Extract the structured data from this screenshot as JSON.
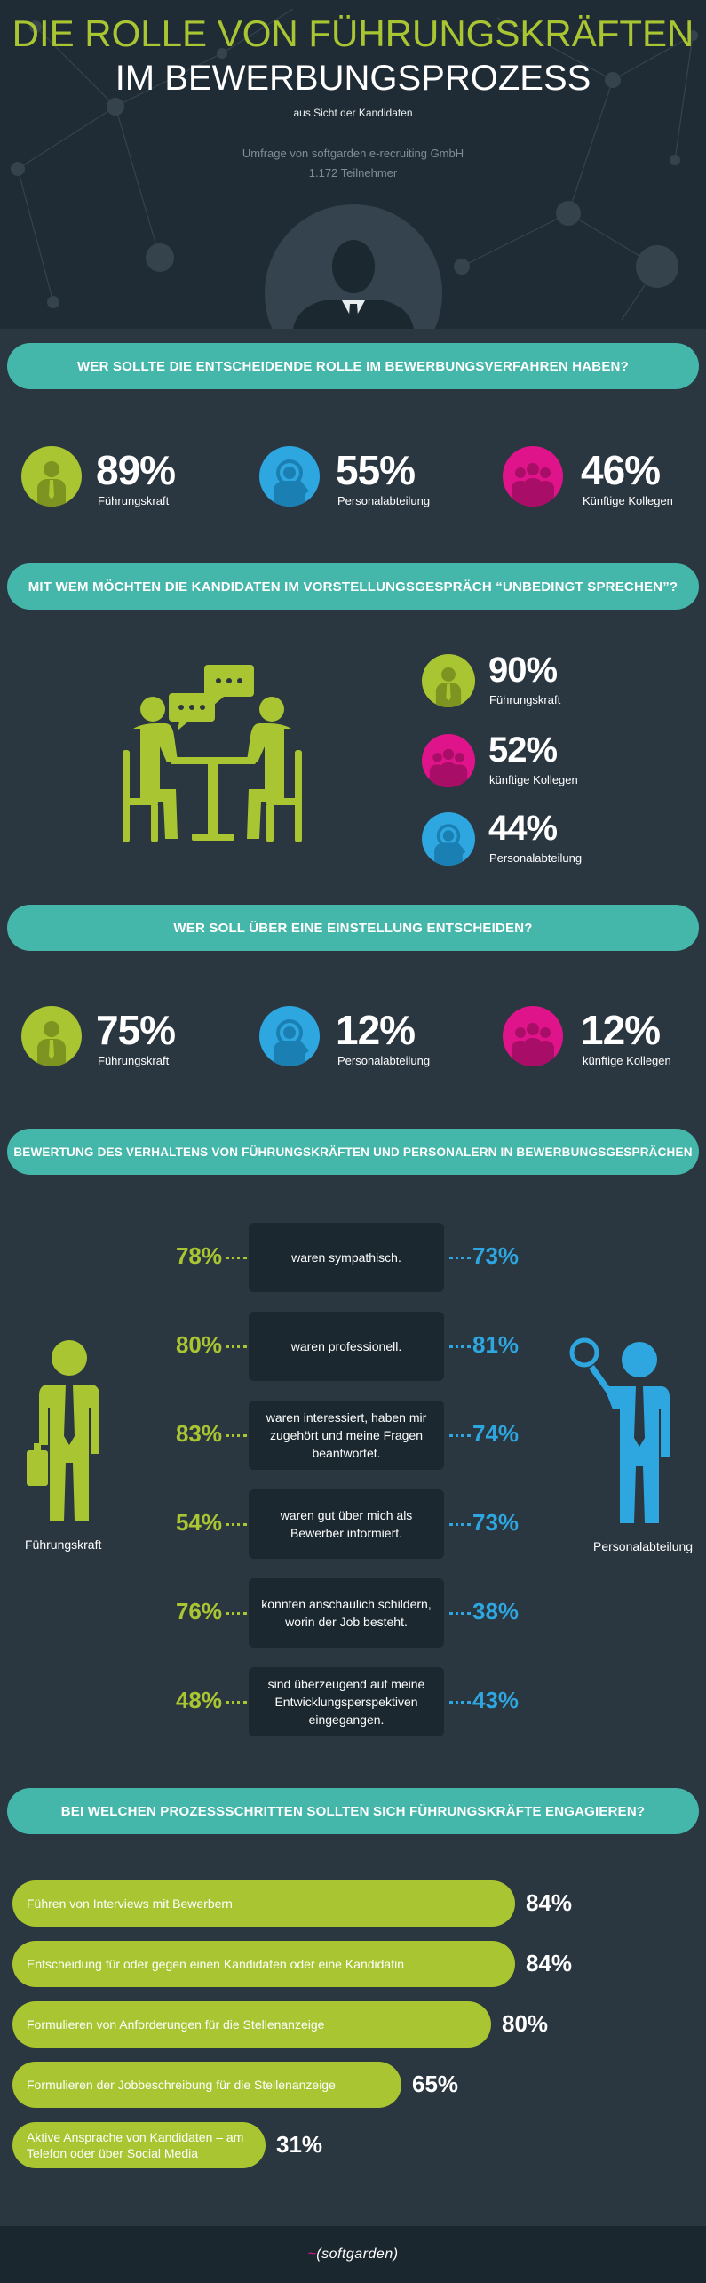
{
  "header": {
    "title_line1": "DIE ROLLE VON FÜHRUNGSKRÄFTEN",
    "title_line2": "IM BEWERBUNGSPROZESS",
    "subtitle": "aus Sicht der Kandidaten",
    "survey_line1": "Umfrage von softgarden e-recruiting GmbH",
    "survey_line2": "1.172 Teilnehmer"
  },
  "colors": {
    "green": "#a9c532",
    "blue": "#2ea6e0",
    "pink": "#e0148a",
    "teal": "#45b6aa",
    "background": "#2a3640"
  },
  "section1": {
    "question": "WER SOLLTE DIE ENTSCHEIDENDE ROLLE IM BEWERBUNGSVERFAHREN HABEN?",
    "stats": [
      {
        "value": "89%",
        "label": "Führungskraft",
        "icon": "manager-icon"
      },
      {
        "value": "55%",
        "label": "Personalabteilung",
        "icon": "hr-magnifier-icon"
      },
      {
        "value": "46%",
        "label": "Künftige Kollegen",
        "icon": "colleagues-icon"
      }
    ]
  },
  "section2": {
    "question": "MIT WEM MÖCHTEN DIE KANDIDATEN IM VORSTELLUNGSGESPRÄCH “UNBEDINGT SPRECHEN”?",
    "stats": [
      {
        "value": "90%",
        "label": "Führungskraft",
        "icon": "manager-icon"
      },
      {
        "value": "52%",
        "label": "künftige Kollegen",
        "icon": "colleagues-icon"
      },
      {
        "value": "44%",
        "label": "Personalabteilung",
        "icon": "hr-magnifier-icon"
      }
    ]
  },
  "section3": {
    "question": "WER SOLL ÜBER EINE EINSTELLUNG ENTSCHEIDEN?",
    "stats": [
      {
        "value": "75%",
        "label": "Führungskraft",
        "icon": "manager-icon"
      },
      {
        "value": "12%",
        "label": "Personalabteilung",
        "icon": "hr-magnifier-icon"
      },
      {
        "value": "12%",
        "label": "künftige Kollegen",
        "icon": "colleagues-icon"
      }
    ]
  },
  "section4": {
    "question": "BEWERTUNG DES VERHALTENS VON FÜHRUNGSKRÄFTEN UND PERSONALERN IN BEWERBUNGSGESPRÄCHEN",
    "left_label": "Führungskraft",
    "right_label": "Personalabteilung",
    "rows": [
      {
        "left": "78%",
        "text": "waren sympathisch.",
        "right": "73%"
      },
      {
        "left": "80%",
        "text": "waren professionell.",
        "right": "81%"
      },
      {
        "left": "83%",
        "text": "waren interessiert, haben mir zugehört und meine Fragen beantwortet.",
        "right": "74%"
      },
      {
        "left": "54%",
        "text": "waren gut über mich als Bewerber informiert.",
        "right": "73%"
      },
      {
        "left": "76%",
        "text": "konnten anschaulich schildern, worin der Job besteht.",
        "right": "38%"
      },
      {
        "left": "48%",
        "text": "sind überzeugend auf meine Entwicklungsperspektiven eingegangen.",
        "right": "43%"
      }
    ]
  },
  "section5": {
    "question": "BEI WELCHEN PROZESSSCHRITTEN SOLLTEN SICH FÜHRUNGSKRÄFTE ENGAGIEREN?",
    "bars": [
      {
        "label": "Führen von Interviews mit Bewerbern",
        "value": "84%",
        "percent": 84
      },
      {
        "label": "Entscheidung für oder gegen einen Kandidaten oder eine Kandidatin",
        "value": "84%",
        "percent": 84
      },
      {
        "label": "Formulieren von Anforderungen für die Stellenanzeige",
        "value": "80%",
        "percent": 80
      },
      {
        "label": "Formulieren der Jobbeschreibung für die Stellenanzeige",
        "value": "65%",
        "percent": 65
      },
      {
        "label": "Aktive Ansprache von Kandidaten – am Telefon oder über Social Media",
        "value": "31%",
        "percent": 31
      }
    ]
  },
  "footer": {
    "logo_text": "softgarden"
  }
}
